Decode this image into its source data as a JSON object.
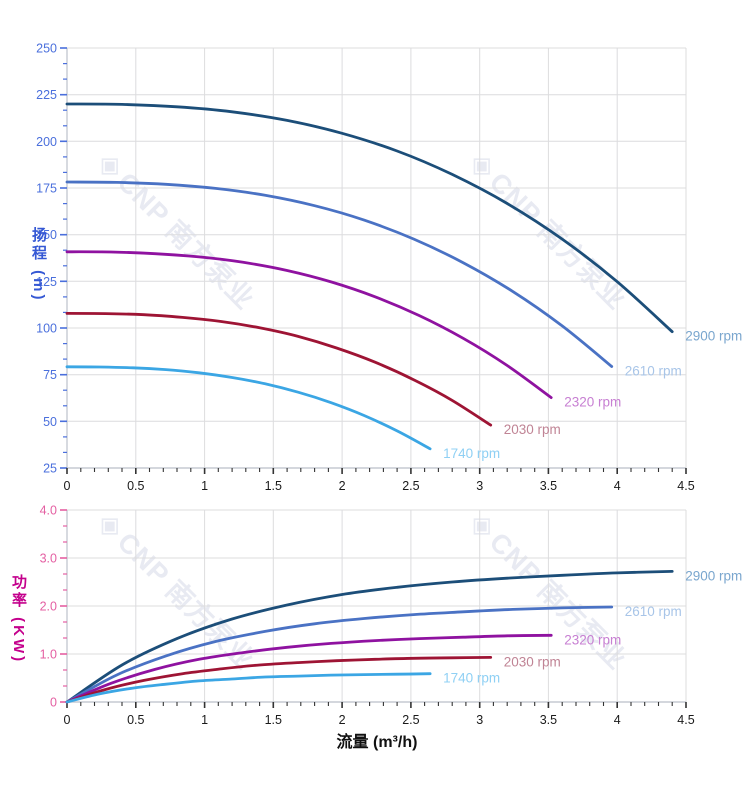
{
  "watermark": {
    "logo_glyph": "◈",
    "text": "CNP 南方泵业",
    "color": "#e8eaf2"
  },
  "palette": {
    "grid": "#dcdcde",
    "spine": "#c6cad2",
    "x_tick": "#333333",
    "x_tick_label": "#1a1a1a"
  },
  "chart_data": [
    {
      "id": "head",
      "type": "line",
      "title": "",
      "ylabel": "扬程 (m)",
      "xlabel": "",
      "ylabel_color": "#3558d4",
      "axis_color": "#4a6fdc",
      "ylim": [
        25,
        250
      ],
      "xlim": [
        0,
        4.5
      ],
      "grid": true,
      "legend_position": "curve-ends-right",
      "y_ticks": [
        "25",
        "50",
        "75",
        "100",
        "125",
        "150",
        "175",
        "200",
        "225",
        "250"
      ],
      "x_ticks": [
        "0",
        "0.5",
        "1",
        "1.5",
        "2",
        "2.5",
        "3",
        "3.5",
        "4",
        "4.5"
      ],
      "y_minor_divisions": 3,
      "x_minor_divisions": 5,
      "series": [
        {
          "name": "2900 rpm",
          "color": "#1c4e79",
          "label_color": "#7aa6ce",
          "points": [
            [
              0,
              220
            ],
            [
              0.4,
              219.8
            ],
            [
              0.8,
              218.5
            ],
            [
              1.2,
              215.8
            ],
            [
              1.6,
              211.2
            ],
            [
              2,
              204.3
            ],
            [
              2.4,
              194.8
            ],
            [
              2.8,
              182.3
            ],
            [
              3.2,
              166.7
            ],
            [
              3.6,
              147.6
            ],
            [
              4,
              124.8
            ],
            [
              4.4,
              98
            ]
          ]
        },
        {
          "name": "2610 rpm",
          "color": "#4a72c4",
          "label_color": "#a8c5e8",
          "points": [
            [
              0,
              178.2
            ],
            [
              0.36,
              178
            ],
            [
              0.72,
              177
            ],
            [
              1.08,
              174.8
            ],
            [
              1.44,
              171.1
            ],
            [
              1.8,
              165.5
            ],
            [
              2.16,
              157.8
            ],
            [
              2.52,
              147.7
            ],
            [
              2.88,
              135
            ],
            [
              3.24,
              119.6
            ],
            [
              3.6,
              101.1
            ],
            [
              3.96,
              79.4
            ]
          ]
        },
        {
          "name": "2320 rpm",
          "color": "#8f12a0",
          "label_color": "#c77fd2",
          "points": [
            [
              0,
              140.8
            ],
            [
              0.32,
              140.7
            ],
            [
              0.64,
              139.8
            ],
            [
              0.96,
              138.1
            ],
            [
              1.28,
              135.2
            ],
            [
              1.6,
              130.8
            ],
            [
              1.92,
              124.7
            ],
            [
              2.24,
              116.7
            ],
            [
              2.56,
              106.7
            ],
            [
              2.88,
              94.5
            ],
            [
              3.2,
              79.9
            ],
            [
              3.52,
              62.7
            ]
          ]
        },
        {
          "name": "2030 rpm",
          "color": "#9e1434",
          "label_color": "#c08495",
          "points": [
            [
              0,
              107.8
            ],
            [
              0.28,
              107.7
            ],
            [
              0.56,
              107.1
            ],
            [
              0.84,
              105.7
            ],
            [
              1.12,
              103.5
            ],
            [
              1.4,
              100.1
            ],
            [
              1.68,
              95.5
            ],
            [
              1.96,
              89.3
            ],
            [
              2.24,
              81.7
            ],
            [
              2.52,
              72.3
            ],
            [
              2.8,
              61.2
            ],
            [
              3.08,
              48
            ]
          ]
        },
        {
          "name": "1740 rpm",
          "color": "#3ba6e4",
          "label_color": "#8fd0f4",
          "points": [
            [
              0,
              79.2
            ],
            [
              0.24,
              79.1
            ],
            [
              0.48,
              78.7
            ],
            [
              0.72,
              77.7
            ],
            [
              0.96,
              76
            ],
            [
              1.2,
              73.5
            ],
            [
              1.44,
              70.1
            ],
            [
              1.68,
              65.6
            ],
            [
              1.92,
              60
            ],
            [
              2.16,
              53.1
            ],
            [
              2.4,
              44.9
            ],
            [
              2.64,
              35.3
            ]
          ]
        }
      ]
    },
    {
      "id": "power",
      "type": "line",
      "title": "",
      "ylabel": "功率 (KW)",
      "xlabel": "流量 (m³/h)",
      "ylabel_color": "#c4008c",
      "axis_color": "#e45fa2",
      "ylim": [
        0,
        4
      ],
      "xlim": [
        0,
        4.5
      ],
      "grid": true,
      "legend_position": "curve-ends-right",
      "y_ticks": [
        "0",
        "1.0",
        "2.0",
        "3.0",
        "4.0"
      ],
      "x_ticks": [
        "0",
        "0.5",
        "1",
        "1.5",
        "2",
        "2.5",
        "3",
        "3.5",
        "4",
        "4.5"
      ],
      "y_minor_divisions": 3,
      "x_minor_divisions": 5,
      "series": [
        {
          "name": "2900 rpm",
          "color": "#1c4e79",
          "label_color": "#7aa6ce",
          "points": [
            [
              0,
              0
            ],
            [
              0.4,
              0.77
            ],
            [
              0.8,
              1.32
            ],
            [
              1.2,
              1.73
            ],
            [
              1.6,
              2.02
            ],
            [
              2,
              2.24
            ],
            [
              2.4,
              2.39
            ],
            [
              2.8,
              2.5
            ],
            [
              3.2,
              2.58
            ],
            [
              3.6,
              2.64
            ],
            [
              4,
              2.69
            ],
            [
              4.4,
              2.72
            ]
          ]
        },
        {
          "name": "2610 rpm",
          "color": "#4a72c4",
          "label_color": "#a8c5e8",
          "points": [
            [
              0,
              0
            ],
            [
              0.36,
              0.56
            ],
            [
              0.72,
              0.96
            ],
            [
              1.08,
              1.26
            ],
            [
              1.44,
              1.47
            ],
            [
              1.8,
              1.63
            ],
            [
              2.16,
              1.74
            ],
            [
              2.52,
              1.82
            ],
            [
              2.88,
              1.88
            ],
            [
              3.24,
              1.93
            ],
            [
              3.6,
              1.96
            ],
            [
              3.96,
              1.98
            ]
          ]
        },
        {
          "name": "2320 rpm",
          "color": "#8f12a0",
          "label_color": "#c77fd2",
          "points": [
            [
              0,
              0
            ],
            [
              0.32,
              0.39
            ],
            [
              0.64,
              0.68
            ],
            [
              0.96,
              0.89
            ],
            [
              1.28,
              1.03
            ],
            [
              1.6,
              1.14
            ],
            [
              1.92,
              1.22
            ],
            [
              2.24,
              1.28
            ],
            [
              2.56,
              1.32
            ],
            [
              2.88,
              1.35
            ],
            [
              3.2,
              1.38
            ],
            [
              3.52,
              1.39
            ]
          ]
        },
        {
          "name": "2030 rpm",
          "color": "#9e1434",
          "label_color": "#c08495",
          "points": [
            [
              0,
              0
            ],
            [
              0.28,
              0.26
            ],
            [
              0.56,
              0.45
            ],
            [
              0.84,
              0.59
            ],
            [
              1.12,
              0.69
            ],
            [
              1.4,
              0.77
            ],
            [
              1.68,
              0.82
            ],
            [
              1.96,
              0.86
            ],
            [
              2.24,
              0.89
            ],
            [
              2.52,
              0.91
            ],
            [
              2.8,
              0.92
            ],
            [
              3.08,
              0.93
            ]
          ]
        },
        {
          "name": "1740 rpm",
          "color": "#3ba6e4",
          "label_color": "#8fd0f4",
          "points": [
            [
              0,
              0
            ],
            [
              0.24,
              0.17
            ],
            [
              0.48,
              0.29
            ],
            [
              0.72,
              0.37
            ],
            [
              0.96,
              0.44
            ],
            [
              1.2,
              0.48
            ],
            [
              1.44,
              0.52
            ],
            [
              1.68,
              0.54
            ],
            [
              1.92,
              0.56
            ],
            [
              2.16,
              0.57
            ],
            [
              2.4,
              0.58
            ],
            [
              2.64,
              0.59
            ]
          ]
        }
      ]
    }
  ]
}
